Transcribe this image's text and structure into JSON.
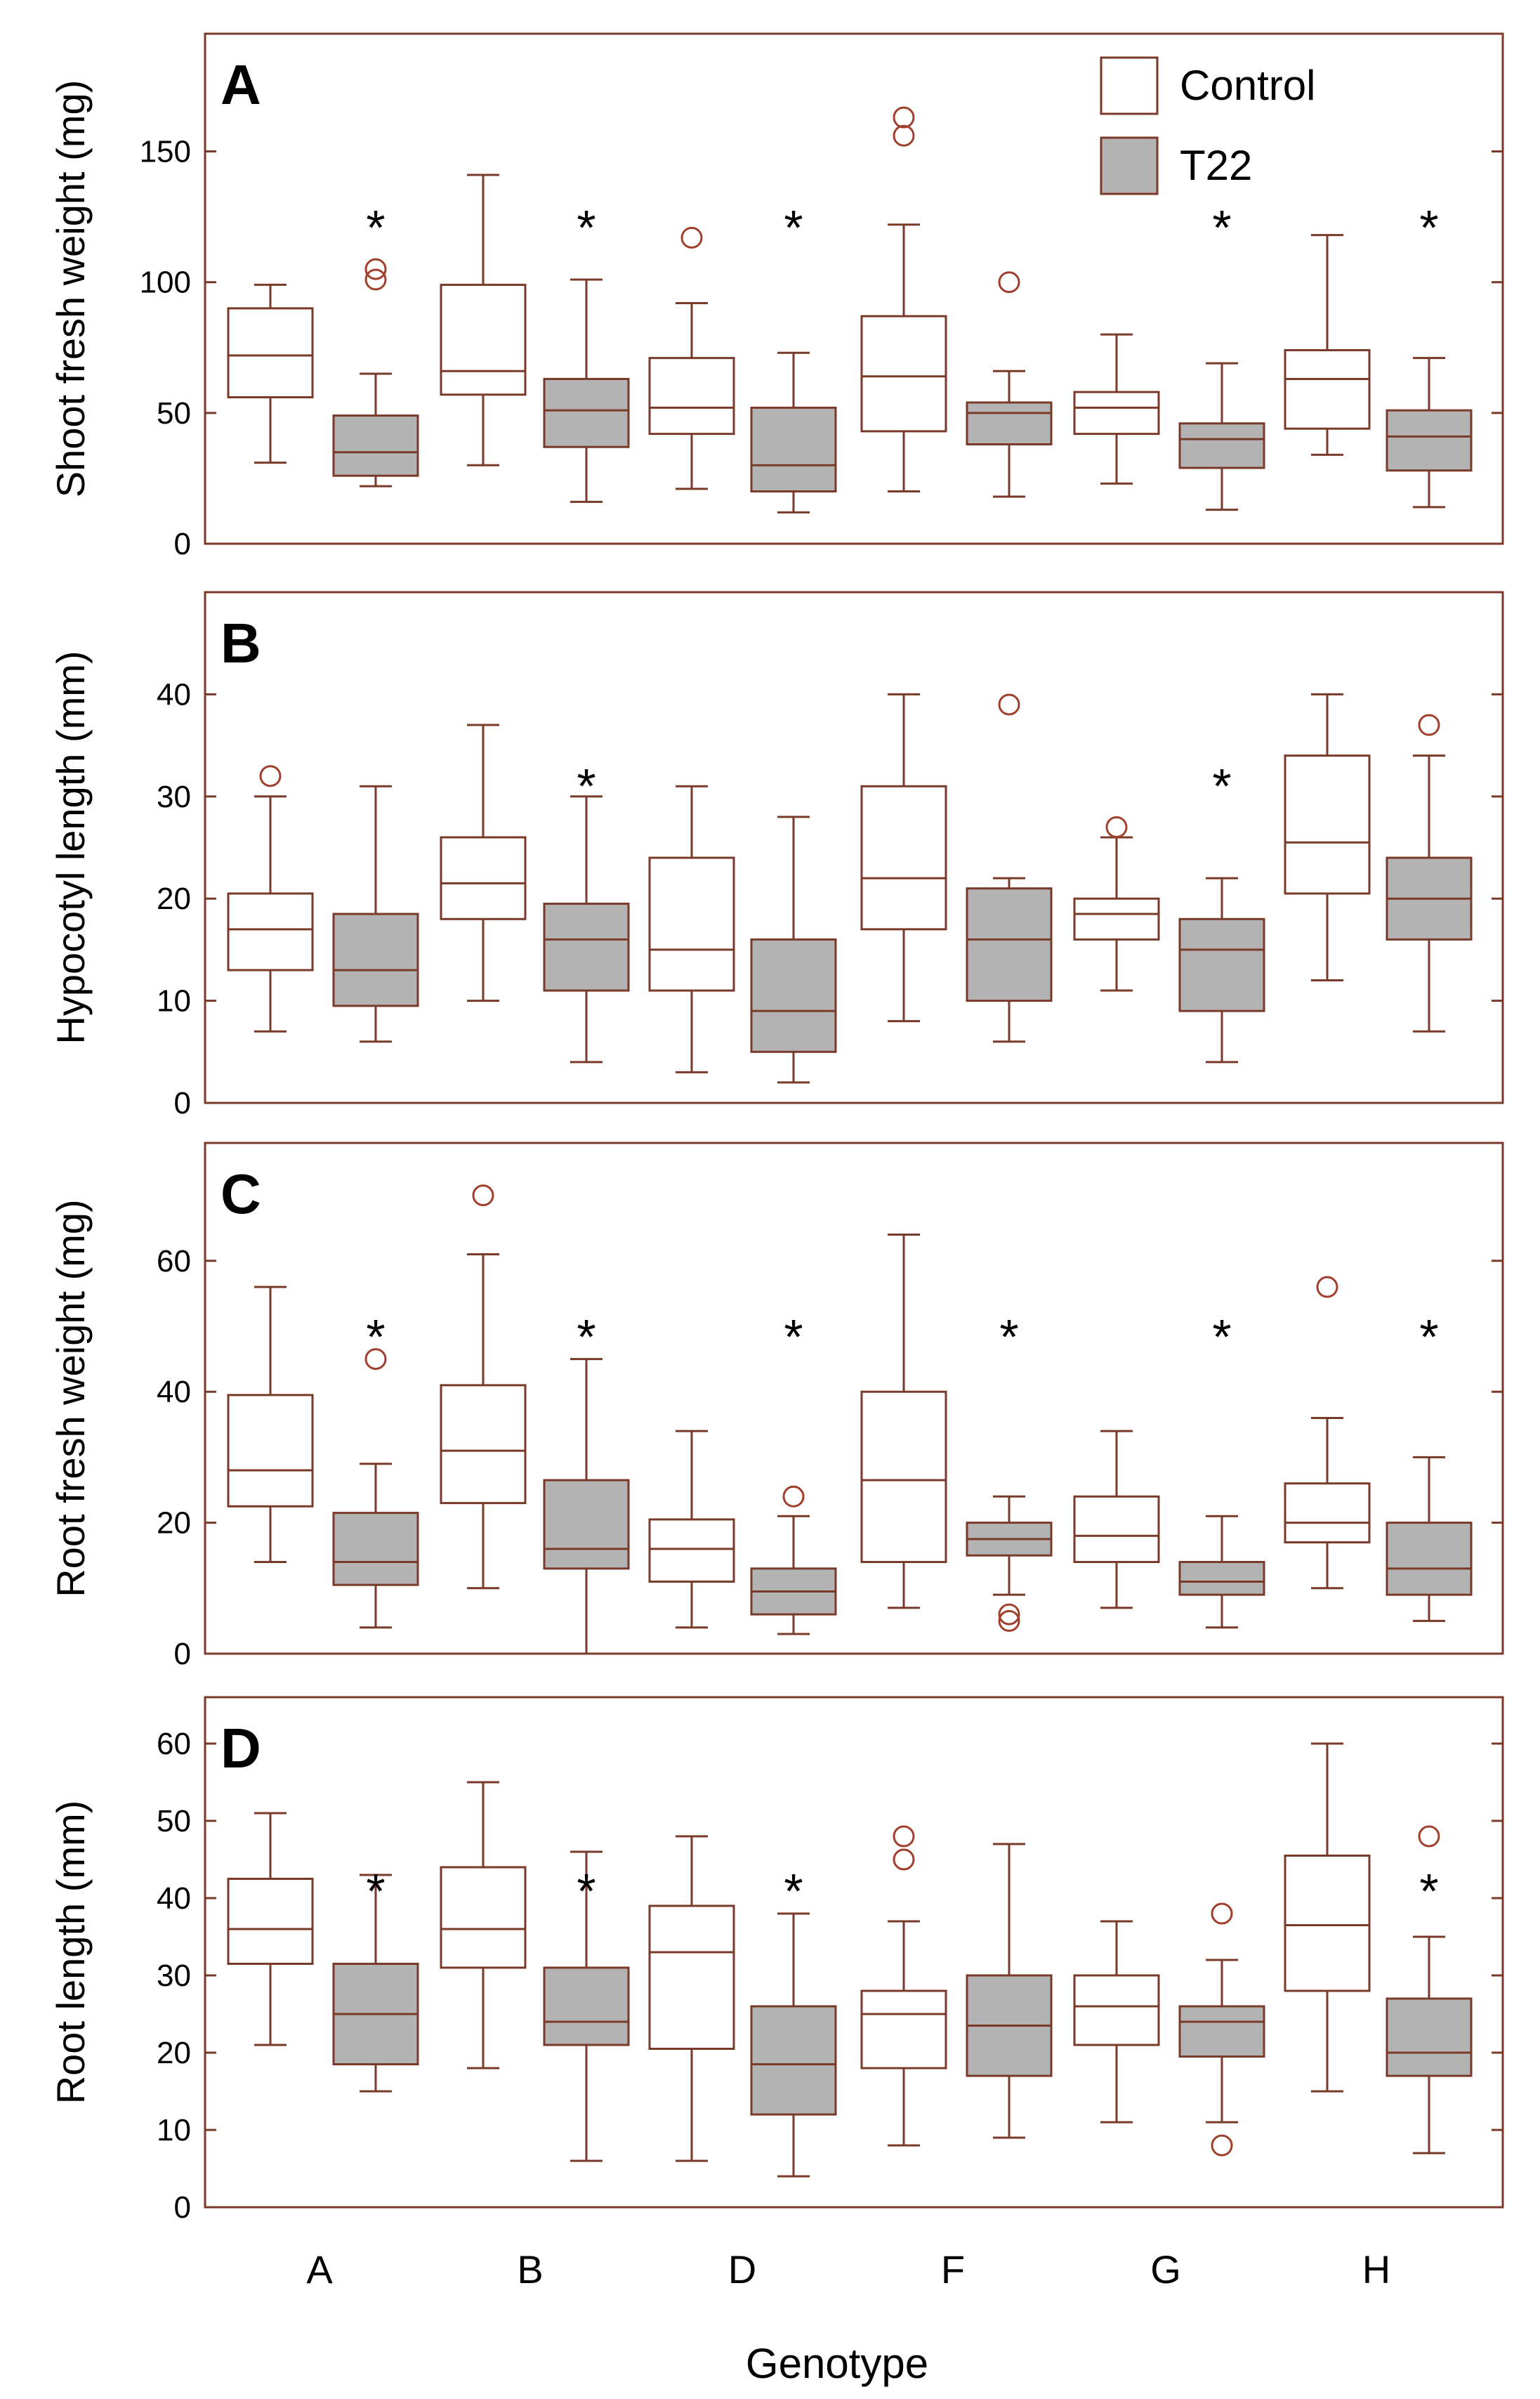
{
  "chart_data": [
    {
      "type": "box",
      "panel": "A",
      "ylabel": "Shoot fresh weight (mg)",
      "ylim": [
        0,
        195
      ],
      "yticks": [
        0,
        50,
        100,
        150
      ],
      "groups": [
        {
          "genotype": "A",
          "control": {
            "min": 31,
            "q1": 56,
            "median": 72,
            "q3": 90,
            "max": 99,
            "outliers": []
          },
          "t22": {
            "min": 22,
            "q1": 26,
            "median": 35,
            "q3": 49,
            "max": 65,
            "outliers": [
              101,
              105
            ]
          },
          "star": true
        },
        {
          "genotype": "B",
          "control": {
            "min": 30,
            "q1": 57,
            "median": 66,
            "q3": 99,
            "max": 141,
            "outliers": []
          },
          "t22": {
            "min": 16,
            "q1": 37,
            "median": 51,
            "q3": 63,
            "max": 101,
            "outliers": []
          },
          "star": true
        },
        {
          "genotype": "D",
          "control": {
            "min": 21,
            "q1": 42,
            "median": 52,
            "q3": 71,
            "max": 92,
            "outliers": [
              117
            ]
          },
          "t22": {
            "min": 12,
            "q1": 20,
            "median": 30,
            "q3": 52,
            "max": 73,
            "outliers": []
          },
          "star": true
        },
        {
          "genotype": "F",
          "control": {
            "min": 20,
            "q1": 43,
            "median": 64,
            "q3": 87,
            "max": 122,
            "outliers": [
              156,
              163
            ]
          },
          "t22": {
            "min": 18,
            "q1": 38,
            "median": 50,
            "q3": 54,
            "max": 66,
            "outliers": [
              100
            ]
          },
          "star": false
        },
        {
          "genotype": "G",
          "control": {
            "min": 23,
            "q1": 42,
            "median": 52,
            "q3": 58,
            "max": 80,
            "outliers": []
          },
          "t22": {
            "min": 13,
            "q1": 29,
            "median": 40,
            "q3": 46,
            "max": 69,
            "outliers": []
          },
          "star": true
        },
        {
          "genotype": "H",
          "control": {
            "min": 34,
            "q1": 44,
            "median": 63,
            "q3": 74,
            "max": 118,
            "outliers": []
          },
          "t22": {
            "min": 14,
            "q1": 28,
            "median": 41,
            "q3": 51,
            "max": 71,
            "outliers": []
          },
          "star": true
        }
      ]
    },
    {
      "type": "box",
      "panel": "B",
      "ylabel": "Hypocotyl length (mm)",
      "ylim": [
        0,
        50
      ],
      "yticks": [
        0,
        10,
        20,
        30,
        40
      ],
      "groups": [
        {
          "genotype": "A",
          "control": {
            "min": 7,
            "q1": 13,
            "median": 17,
            "q3": 20.5,
            "max": 30,
            "outliers": [
              32
            ]
          },
          "t22": {
            "min": 6,
            "q1": 9.5,
            "median": 13,
            "q3": 18.5,
            "max": 31,
            "outliers": []
          },
          "star": false
        },
        {
          "genotype": "B",
          "control": {
            "min": 10,
            "q1": 18,
            "median": 21.5,
            "q3": 26,
            "max": 37,
            "outliers": []
          },
          "t22": {
            "min": 4,
            "q1": 11,
            "median": 16,
            "q3": 19.5,
            "max": 30,
            "outliers": []
          },
          "star": true
        },
        {
          "genotype": "D",
          "control": {
            "min": 3,
            "q1": 11,
            "median": 15,
            "q3": 24,
            "max": 31,
            "outliers": []
          },
          "t22": {
            "min": 2,
            "q1": 5,
            "median": 9,
            "q3": 16,
            "max": 28,
            "outliers": []
          },
          "star": false
        },
        {
          "genotype": "F",
          "control": {
            "min": 8,
            "q1": 17,
            "median": 22,
            "q3": 31,
            "max": 40,
            "outliers": []
          },
          "t22": {
            "min": 6,
            "q1": 10,
            "median": 16,
            "q3": 21,
            "max": 22,
            "outliers": [
              39
            ]
          },
          "star": false
        },
        {
          "genotype": "G",
          "control": {
            "min": 11,
            "q1": 16,
            "median": 18.5,
            "q3": 20,
            "max": 26,
            "outliers": [
              27
            ]
          },
          "t22": {
            "min": 4,
            "q1": 9,
            "median": 15,
            "q3": 18,
            "max": 22,
            "outliers": []
          },
          "star": true
        },
        {
          "genotype": "H",
          "control": {
            "min": 12,
            "q1": 20.5,
            "median": 25.5,
            "q3": 34,
            "max": 40,
            "outliers": []
          },
          "t22": {
            "min": 7,
            "q1": 16,
            "median": 20,
            "q3": 24,
            "max": 34,
            "outliers": [
              37
            ]
          },
          "star": false
        }
      ]
    },
    {
      "type": "box",
      "panel": "C",
      "ylabel": "Root fresh weight (mg)",
      "ylim": [
        0,
        78
      ],
      "yticks": [
        0,
        20,
        40,
        60
      ],
      "groups": [
        {
          "genotype": "A",
          "control": {
            "min": 14,
            "q1": 22.5,
            "median": 28,
            "q3": 39.5,
            "max": 56,
            "outliers": []
          },
          "t22": {
            "min": 4,
            "q1": 10.5,
            "median": 14,
            "q3": 21.5,
            "max": 29,
            "outliers": [
              45
            ]
          },
          "star": true
        },
        {
          "genotype": "B",
          "control": {
            "min": 10,
            "q1": 23,
            "median": 31,
            "q3": 41,
            "max": 61,
            "outliers": [
              70
            ]
          },
          "t22": {
            "min": 0,
            "q1": 13,
            "median": 16,
            "q3": 26.5,
            "max": 45,
            "outliers": []
          },
          "star": true
        },
        {
          "genotype": "D",
          "control": {
            "min": 4,
            "q1": 11,
            "median": 16,
            "q3": 20.5,
            "max": 34,
            "outliers": []
          },
          "t22": {
            "min": 3,
            "q1": 6,
            "median": 9.5,
            "q3": 13,
            "max": 21,
            "outliers": [
              24
            ]
          },
          "star": true
        },
        {
          "genotype": "F",
          "control": {
            "min": 7,
            "q1": 14,
            "median": 26.5,
            "q3": 40,
            "max": 64,
            "outliers": []
          },
          "t22": {
            "min": 9,
            "q1": 15,
            "median": 17.5,
            "q3": 20,
            "max": 24,
            "outliers": [
              5,
              6
            ]
          },
          "star": true
        },
        {
          "genotype": "G",
          "control": {
            "min": 7,
            "q1": 14,
            "median": 18,
            "q3": 24,
            "max": 34,
            "outliers": []
          },
          "t22": {
            "min": 4,
            "q1": 9,
            "median": 11,
            "q3": 14,
            "max": 21,
            "outliers": []
          },
          "star": true
        },
        {
          "genotype": "H",
          "control": {
            "min": 10,
            "q1": 17,
            "median": 20,
            "q3": 26,
            "max": 36,
            "outliers": [
              56
            ]
          },
          "t22": {
            "min": 5,
            "q1": 9,
            "median": 13,
            "q3": 20,
            "max": 30,
            "outliers": []
          },
          "star": true
        }
      ]
    },
    {
      "type": "box",
      "panel": "D",
      "ylabel": "Root length (mm)",
      "ylim": [
        0,
        66
      ],
      "yticks": [
        0,
        10,
        20,
        30,
        40,
        50,
        60
      ],
      "groups": [
        {
          "genotype": "A",
          "control": {
            "min": 21,
            "q1": 31.5,
            "median": 36,
            "q3": 42.5,
            "max": 51,
            "outliers": []
          },
          "t22": {
            "min": 15,
            "q1": 18.5,
            "median": 25,
            "q3": 31.5,
            "max": 43,
            "outliers": []
          },
          "star": true
        },
        {
          "genotype": "B",
          "control": {
            "min": 18,
            "q1": 31,
            "median": 36,
            "q3": 44,
            "max": 55,
            "outliers": []
          },
          "t22": {
            "min": 6,
            "q1": 21,
            "median": 24,
            "q3": 31,
            "max": 46,
            "outliers": []
          },
          "star": true
        },
        {
          "genotype": "D",
          "control": {
            "min": 6,
            "q1": 20.5,
            "median": 33,
            "q3": 39,
            "max": 48,
            "outliers": []
          },
          "t22": {
            "min": 4,
            "q1": 12,
            "median": 18.5,
            "q3": 26,
            "max": 38,
            "outliers": []
          },
          "star": true
        },
        {
          "genotype": "F",
          "control": {
            "min": 8,
            "q1": 18,
            "median": 25,
            "q3": 28,
            "max": 37,
            "outliers": [
              45,
              48
            ]
          },
          "t22": {
            "min": 9,
            "q1": 17,
            "median": 23.5,
            "q3": 30,
            "max": 47,
            "outliers": []
          },
          "star": false
        },
        {
          "genotype": "G",
          "control": {
            "min": 11,
            "q1": 21,
            "median": 26,
            "q3": 30,
            "max": 37,
            "outliers": []
          },
          "t22": {
            "min": 11,
            "q1": 19.5,
            "median": 24,
            "q3": 26,
            "max": 32,
            "outliers": [
              8,
              38
            ]
          },
          "star": false
        },
        {
          "genotype": "H",
          "control": {
            "min": 15,
            "q1": 28,
            "median": 36.5,
            "q3": 45.5,
            "max": 60,
            "outliers": []
          },
          "t22": {
            "min": 7,
            "q1": 17,
            "median": 20,
            "q3": 27,
            "max": 35,
            "outliers": [
              48
            ]
          },
          "star": true
        }
      ]
    }
  ],
  "legend": {
    "control_label": "Control",
    "t22_label": "T22"
  },
  "star_symbol": "*",
  "xlabel": "Genotype",
  "categories": [
    "A",
    "B",
    "D",
    "F",
    "G",
    "H"
  ],
  "colors": {
    "frame": "#7a3a2a",
    "t22_fill": "#b3b3b3",
    "control_fill": "#ffffff",
    "outlier": "#a0402c"
  }
}
